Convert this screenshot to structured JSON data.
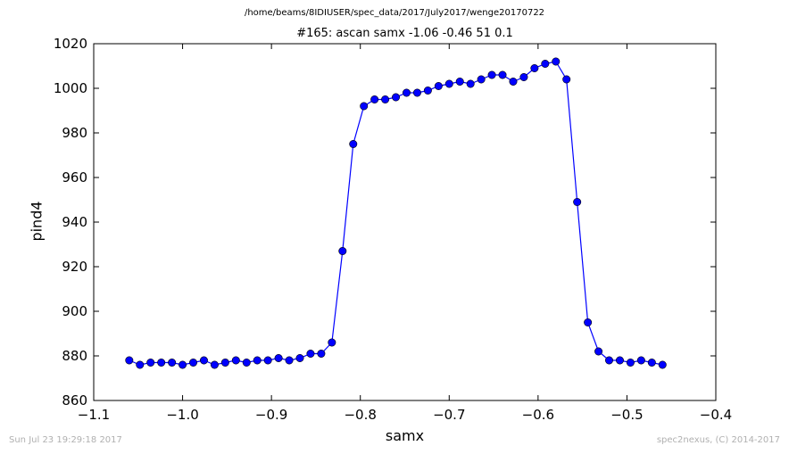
{
  "figure": {
    "path_title": "/home/beams/8IDIUSER/spec_data/2017/July2017/wenge20170722",
    "footer_left": "Sun Jul 23 19:29:18 2017",
    "footer_right": "spec2nexus, (C) 2014-2017"
  },
  "chart_data": {
    "type": "line",
    "title": "#165: ascan  samx -1.06 -0.46  51 0.1",
    "xlabel": "samx",
    "ylabel": "pind4",
    "xlim": [
      -1.1,
      -0.4
    ],
    "ylim": [
      860,
      1020
    ],
    "x_ticks": [
      -1.1,
      -1.0,
      -0.9,
      -0.8,
      -0.7,
      -0.6,
      -0.5,
      -0.4
    ],
    "x_tick_labels": [
      "−1.1",
      "−1.0",
      "−0.9",
      "−0.8",
      "−0.7",
      "−0.6",
      "−0.5",
      "−0.4"
    ],
    "y_ticks": [
      860,
      880,
      900,
      920,
      940,
      960,
      980,
      1000,
      1020
    ],
    "y_tick_labels": [
      "860",
      "880",
      "900",
      "920",
      "940",
      "960",
      "980",
      "1000",
      "1020"
    ],
    "grid": false,
    "line_color": "#0000ff",
    "marker": "circle",
    "x": [
      -1.06,
      -1.048,
      -1.036,
      -1.024,
      -1.012,
      -1.0,
      -0.988,
      -0.976,
      -0.964,
      -0.952,
      -0.94,
      -0.928,
      -0.916,
      -0.904,
      -0.892,
      -0.88,
      -0.868,
      -0.856,
      -0.844,
      -0.832,
      -0.82,
      -0.808,
      -0.796,
      -0.784,
      -0.772,
      -0.76,
      -0.748,
      -0.736,
      -0.724,
      -0.712,
      -0.7,
      -0.688,
      -0.676,
      -0.664,
      -0.652,
      -0.64,
      -0.628,
      -0.616,
      -0.604,
      -0.592,
      -0.58,
      -0.568,
      -0.556,
      -0.544,
      -0.532,
      -0.52,
      -0.508,
      -0.496,
      -0.484,
      -0.472,
      -0.46
    ],
    "y": [
      878,
      876,
      877,
      877,
      877,
      876,
      877,
      878,
      876,
      877,
      878,
      877,
      878,
      878,
      879,
      878,
      879,
      881,
      881,
      886,
      927,
      975,
      992,
      995,
      995,
      996,
      998,
      998,
      999,
      1001,
      1002,
      1003,
      1002,
      1004,
      1006,
      1006,
      1003,
      1005,
      1009,
      1011,
      1012,
      1004,
      949,
      895,
      882,
      878,
      878,
      877,
      878,
      877,
      876
    ]
  }
}
